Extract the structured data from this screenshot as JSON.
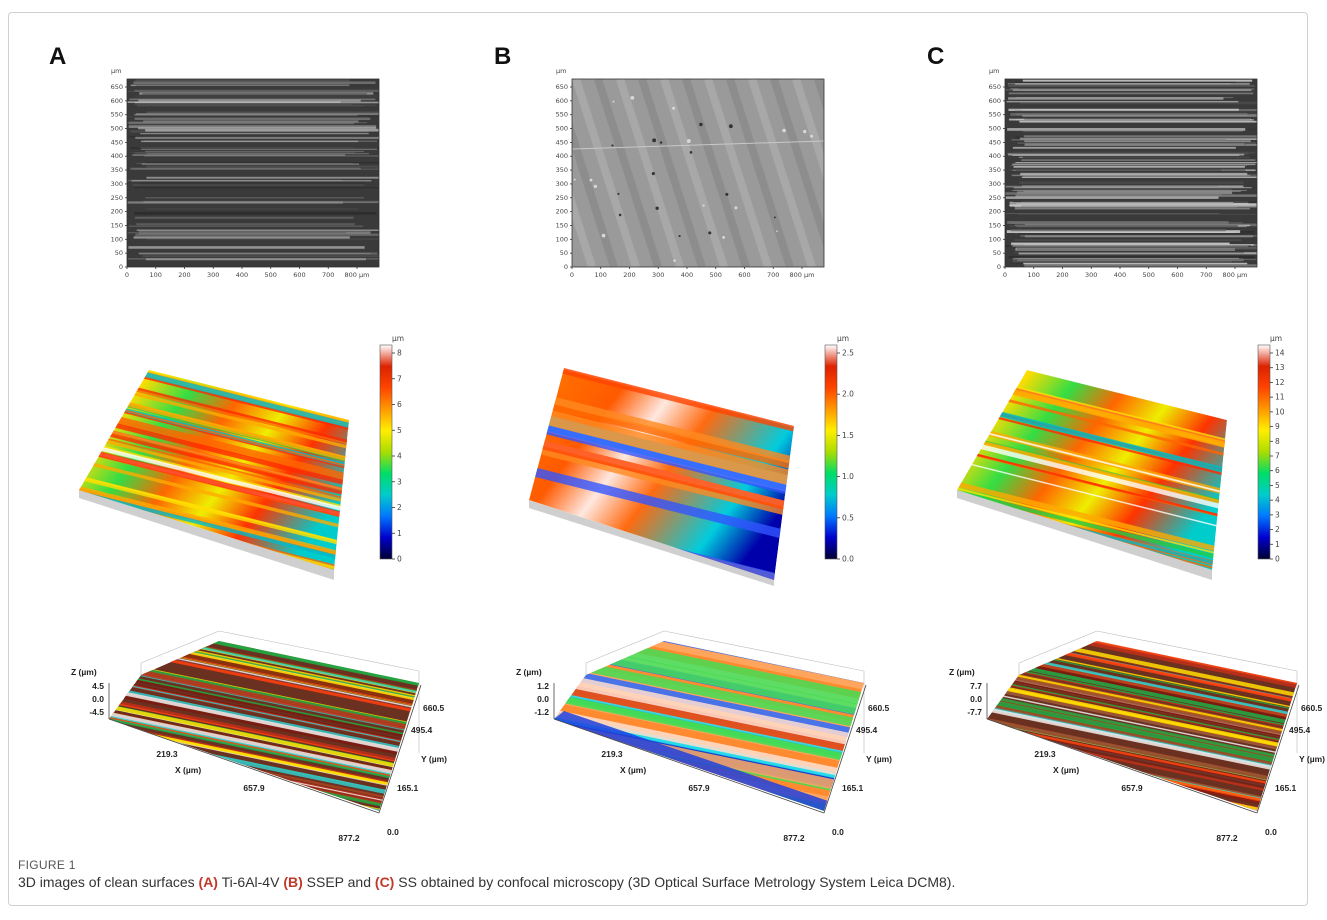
{
  "figure": {
    "label": "FIGURE 1",
    "caption_parts": [
      {
        "text": "3D images of clean surfaces ",
        "bold": false
      },
      {
        "text": "(A)",
        "bold": true
      },
      {
        "text": " Ti-6Al-4V ",
        "bold": false
      },
      {
        "text": "(B)",
        "bold": true
      },
      {
        "text": " SSEP and ",
        "bold": false
      },
      {
        "text": "(C)",
        "bold": true
      },
      {
        "text": " SS obtained by confocal microscopy (3D Optical Surface Metrology System Leica DCM8).",
        "bold": false
      }
    ]
  },
  "panels": [
    {
      "letter": "A",
      "surface": "dark-striated",
      "micro": {
        "unit": "µm",
        "x_ticks": [
          "0",
          "100",
          "200",
          "300",
          "400",
          "500",
          "600",
          "700",
          "800 µm"
        ],
        "y_ticks": [
          "0",
          "50",
          "100",
          "150",
          "200",
          "250",
          "300",
          "350",
          "400",
          "450",
          "500",
          "550",
          "600",
          "650"
        ]
      },
      "colorbar": {
        "unit": "µm",
        "ticks": [
          "0",
          "1",
          "2",
          "3",
          "4",
          "5",
          "6",
          "7",
          "8"
        ]
      },
      "plot3d": {
        "z_label": "Z (µm)",
        "z_ticks": [
          "4.5",
          "0.0",
          "-4.5"
        ],
        "x_label": "X (µm)",
        "x_ticks": [
          "219.3",
          "657.9",
          "877.2"
        ],
        "y_label": "Y (µm)",
        "y_ticks": [
          "660.5",
          "495.4",
          "165.1",
          "0.0"
        ]
      }
    },
    {
      "letter": "B",
      "surface": "light-smooth",
      "micro": {
        "unit": "µm",
        "x_ticks": [
          "0",
          "100",
          "200",
          "300",
          "400",
          "500",
          "600",
          "700",
          "800 µm"
        ],
        "y_ticks": [
          "0",
          "50",
          "100",
          "150",
          "200",
          "250",
          "300",
          "350",
          "400",
          "450",
          "500",
          "550",
          "600",
          "650"
        ]
      },
      "colorbar": {
        "unit": "µm",
        "ticks": [
          "0.0",
          "0.5",
          "1.0",
          "1.5",
          "2.0",
          "2.5"
        ]
      },
      "plot3d": {
        "z_label": "Z (µm)",
        "z_ticks": [
          "1.2",
          "0.0",
          "-1.2"
        ],
        "x_label": "X (µm)",
        "x_ticks": [
          "219.3",
          "657.9",
          "877.2"
        ],
        "y_label": "Y (µm)",
        "y_ticks": [
          "660.5",
          "495.4",
          "165.1",
          "0.0"
        ]
      }
    },
    {
      "letter": "C",
      "surface": "dark-fine-striated",
      "micro": {
        "unit": "µm",
        "x_ticks": [
          "0",
          "100",
          "200",
          "300",
          "400",
          "500",
          "600",
          "700",
          "800 µm"
        ],
        "y_ticks": [
          "0",
          "50",
          "100",
          "150",
          "200",
          "250",
          "300",
          "350",
          "400",
          "450",
          "500",
          "550",
          "600",
          "650"
        ]
      },
      "colorbar": {
        "unit": "µm",
        "ticks": [
          "0",
          "1",
          "2",
          "3",
          "4",
          "5",
          "6",
          "7",
          "8",
          "9",
          "10",
          "11",
          "12",
          "13",
          "14"
        ]
      },
      "plot3d": {
        "z_label": "Z (µm)",
        "z_ticks": [
          "7.7",
          "0.0",
          "-7.7"
        ],
        "x_label": "X (µm)",
        "x_ticks": [
          "219.3",
          "657.9",
          "877.2"
        ],
        "y_label": "Y (µm)",
        "y_ticks": [
          "660.5",
          "495.4",
          "165.1",
          "0.0"
        ]
      }
    }
  ],
  "colors": {
    "caption_accent": "#c0392b",
    "colormap": [
      "#000033",
      "#0000cc",
      "#0077ff",
      "#00cccc",
      "#00dd66",
      "#aadd00",
      "#ffee00",
      "#ff9900",
      "#ff4400",
      "#dd2200",
      "#ffffff"
    ]
  }
}
